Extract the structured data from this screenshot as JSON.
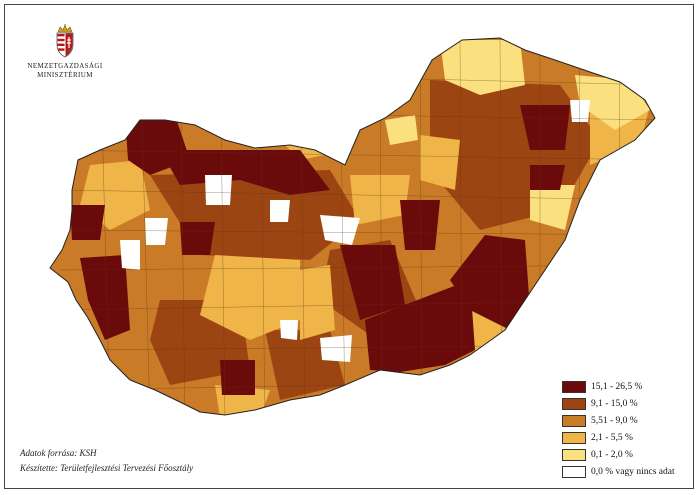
{
  "logo": {
    "icon": "hungarian-coat-of-arms-icon",
    "line1": "Nemzetgazdasági",
    "line2": "Minisztérium"
  },
  "legend": {
    "items": [
      {
        "label": "15,1 - 26,5 %",
        "color": "#6b0a0a"
      },
      {
        "label": "9,1 - 15,0 %",
        "color": "#9c4512"
      },
      {
        "label": "5,51 - 9,0 %",
        "color": "#c97b27"
      },
      {
        "label": "2,1 - 5,5 %",
        "color": "#efb548"
      },
      {
        "label": "0,1 - 2,0 %",
        "color": "#fae07e"
      },
      {
        "label": "0,0 % vagy nincs adat",
        "color": "#ffffff"
      }
    ]
  },
  "credits": {
    "source": "Adatok forrása: KSH",
    "author": "Készítette: Területfejlesztési Tervezési Főosztály"
  }
}
